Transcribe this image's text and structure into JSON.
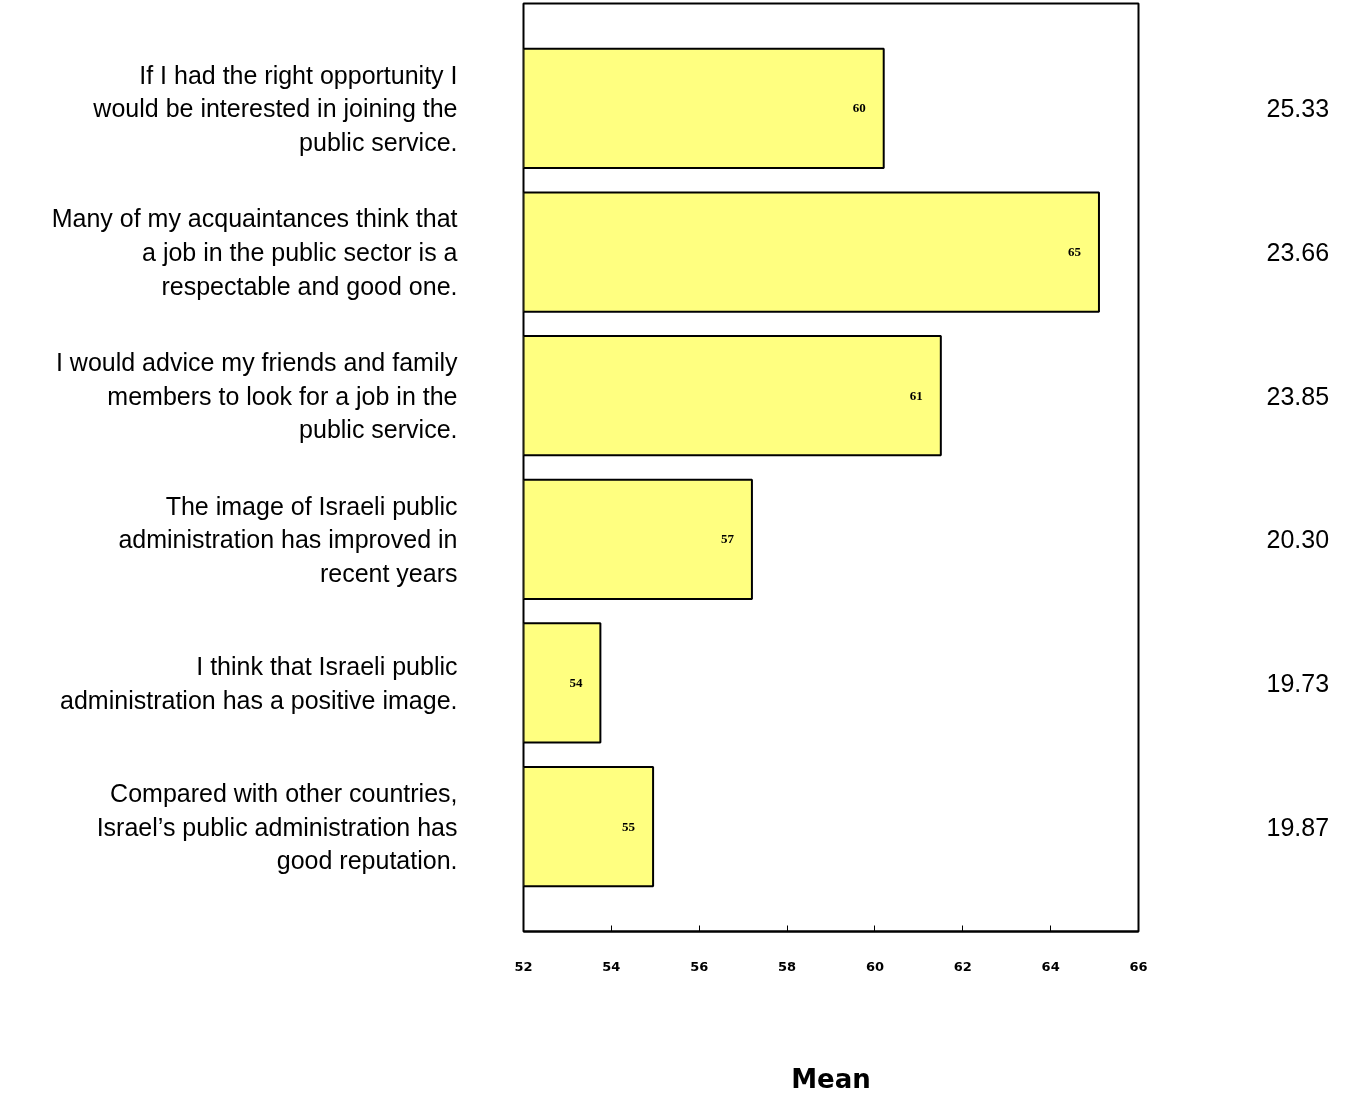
{
  "chart_data": {
    "type": "bar",
    "orientation": "horizontal",
    "xlabel": "Mean",
    "categories": [
      "If I had the right opportunity I would be interested in joining the public service.",
      "Many of my acquaintances think that a job in the public sector is a respectable and good one.",
      "I would advice my friends and family members to look for a job in the public service.",
      "The image of Israeli public administration has improved in recent years",
      "I think that Israeli public administration has a positive image.",
      "Compared with other countries, Israel’s public administration has good reputation."
    ],
    "values": [
      60.2,
      65.1,
      61.5,
      57.2,
      53.75,
      54.95
    ],
    "value_labels": [
      "60",
      "65",
      "61",
      "57",
      "54",
      "55"
    ],
    "color": "#ffff80",
    "xlim": [
      52,
      66
    ],
    "xticks": [
      52,
      54,
      56,
      58,
      60,
      62,
      64,
      66
    ],
    "grid": false,
    "annotations": [
      "25.33",
      "23.66",
      "23.85",
      "20.30",
      "19.73",
      "19.87"
    ]
  }
}
